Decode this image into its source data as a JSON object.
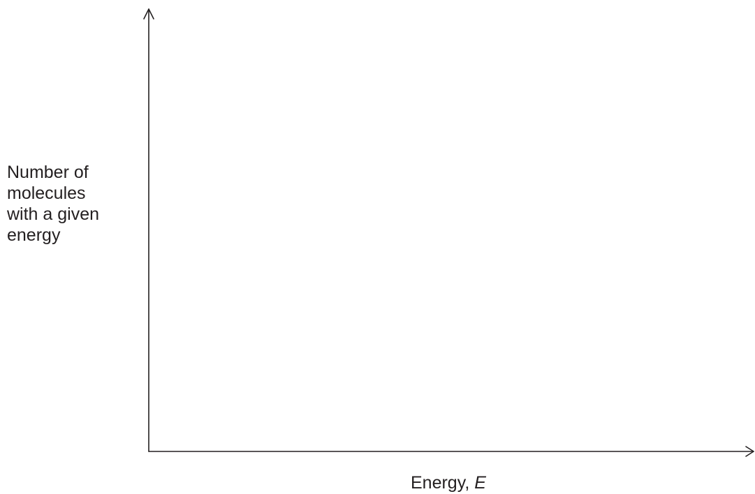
{
  "diagram": {
    "y_axis_label_lines": [
      "Number of",
      "molecules",
      "with a given",
      "energy"
    ],
    "x_axis_label_text": "Energy, ",
    "x_axis_label_variable": "E"
  }
}
